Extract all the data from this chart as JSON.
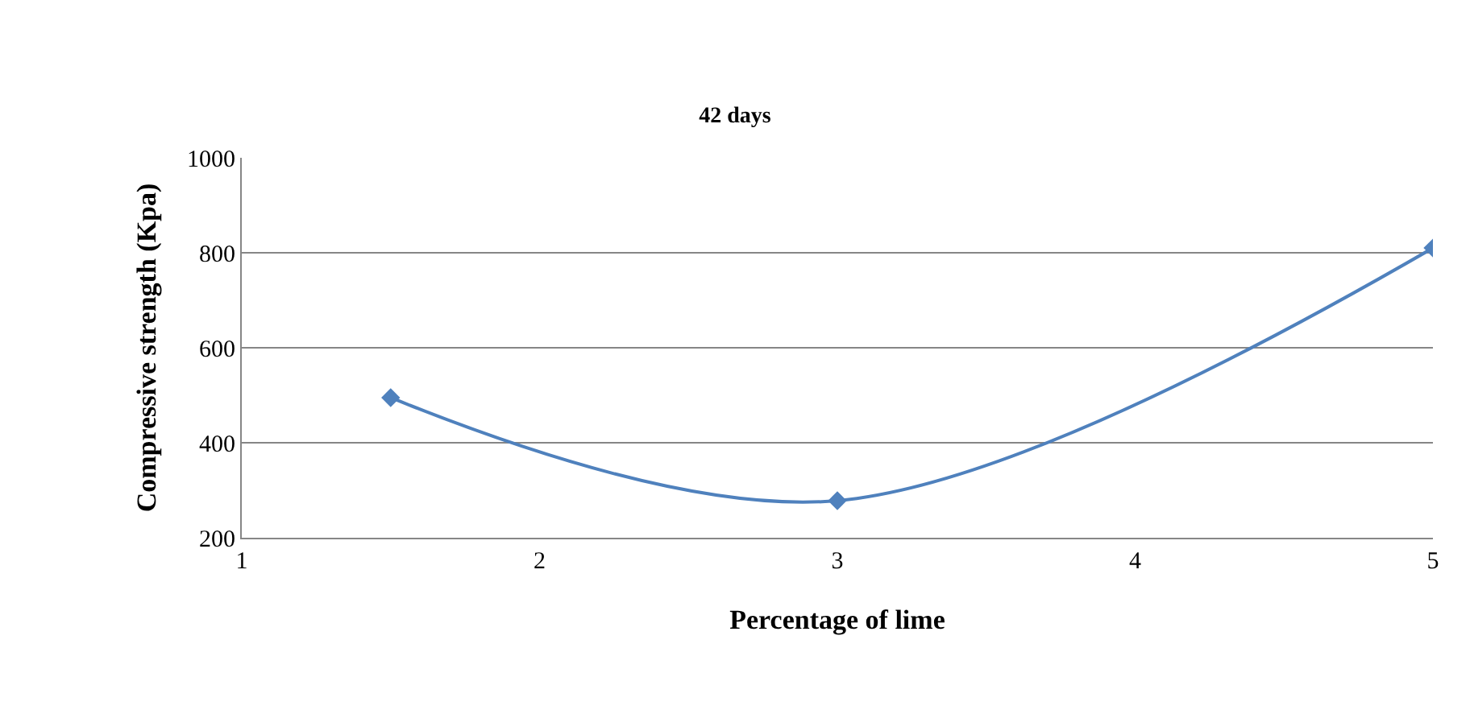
{
  "chart_data": {
    "type": "line",
    "title": "42 days",
    "xlabel": "Percentage of lime",
    "ylabel": "Compressive strength (Kpa)",
    "x": [
      1.5,
      3,
      5
    ],
    "series": [
      {
        "color": "#4f81bd",
        "values": [
          495,
          278,
          810
        ]
      }
    ],
    "xlim": [
      1,
      5
    ],
    "xticks": [
      1,
      2,
      3,
      4,
      5
    ],
    "ylim": [
      200,
      1000
    ],
    "yticks": [
      200,
      400,
      600,
      800,
      1000
    ],
    "grid": "y",
    "legend": false,
    "marker": "diamond",
    "line_style": "solid"
  }
}
